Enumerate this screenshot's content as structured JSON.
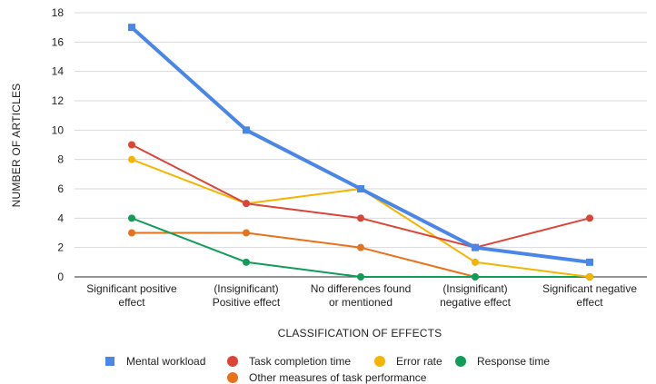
{
  "chart_data": {
    "type": "line",
    "categories": [
      [
        "Significant positive",
        "effect"
      ],
      [
        "(Insignificant)",
        "Positive effect"
      ],
      [
        "No differences found",
        "or mentioned"
      ],
      [
        "(Insignificant)",
        "negative effect"
      ],
      [
        "Significant negative",
        "effect"
      ]
    ],
    "xlabel": "CLASSIFICATION OF EFFECTS",
    "ylabel": "NUMBER OF ARTICLES",
    "ylim": [
      0,
      18
    ],
    "yticks": [
      0,
      2,
      4,
      6,
      8,
      10,
      12,
      14,
      16,
      18
    ],
    "grid": true,
    "legend_position": "bottom",
    "series": [
      {
        "name": "Mental workload",
        "color": "#4a86e8",
        "marker": "square",
        "values": [
          17,
          10,
          6,
          2,
          1
        ]
      },
      {
        "name": "Task completion time",
        "color": "#db4437",
        "marker": "circle",
        "values": [
          9,
          5,
          4,
          2,
          4
        ]
      },
      {
        "name": "Error rate",
        "color": "#f4b400",
        "marker": "circle",
        "values": [
          8,
          5,
          6,
          1,
          0
        ]
      },
      {
        "name": "Response time",
        "color": "#0f9d58",
        "marker": "circle",
        "values": [
          4,
          1,
          0,
          0,
          0
        ]
      },
      {
        "name": "Other measures of task performance",
        "color": "#e8711a",
        "marker": "circle",
        "values": [
          3,
          3,
          2,
          0,
          0
        ]
      }
    ]
  }
}
